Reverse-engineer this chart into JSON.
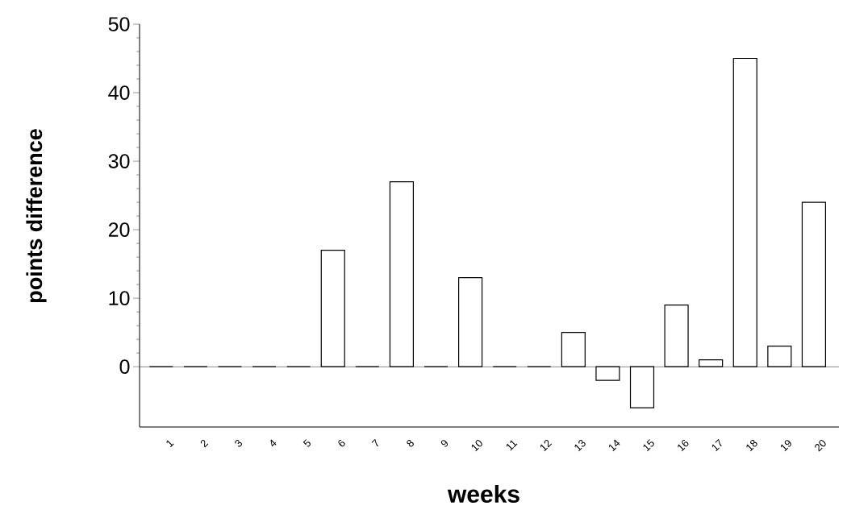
{
  "chart_data": {
    "type": "bar",
    "xlabel": "weeks",
    "ylabel": "points difference",
    "categories": [
      "1",
      "2",
      "3",
      "4",
      "5",
      "6",
      "7",
      "8",
      "9",
      "10",
      "11",
      "12",
      "13",
      "14",
      "15",
      "16",
      "17",
      "18",
      "19",
      "20"
    ],
    "values": [
      0,
      0,
      0,
      0,
      0,
      17,
      0,
      27,
      0,
      13,
      0,
      0,
      5,
      -2,
      -6,
      9,
      1,
      45,
      3,
      24
    ],
    "color": "#000000",
    "ylim": [
      -8.8,
      50
    ],
    "yticks": [
      0,
      10,
      20,
      30,
      40,
      50
    ],
    "ref_lines": [
      {
        "axis": "y",
        "value": 0
      }
    ]
  }
}
